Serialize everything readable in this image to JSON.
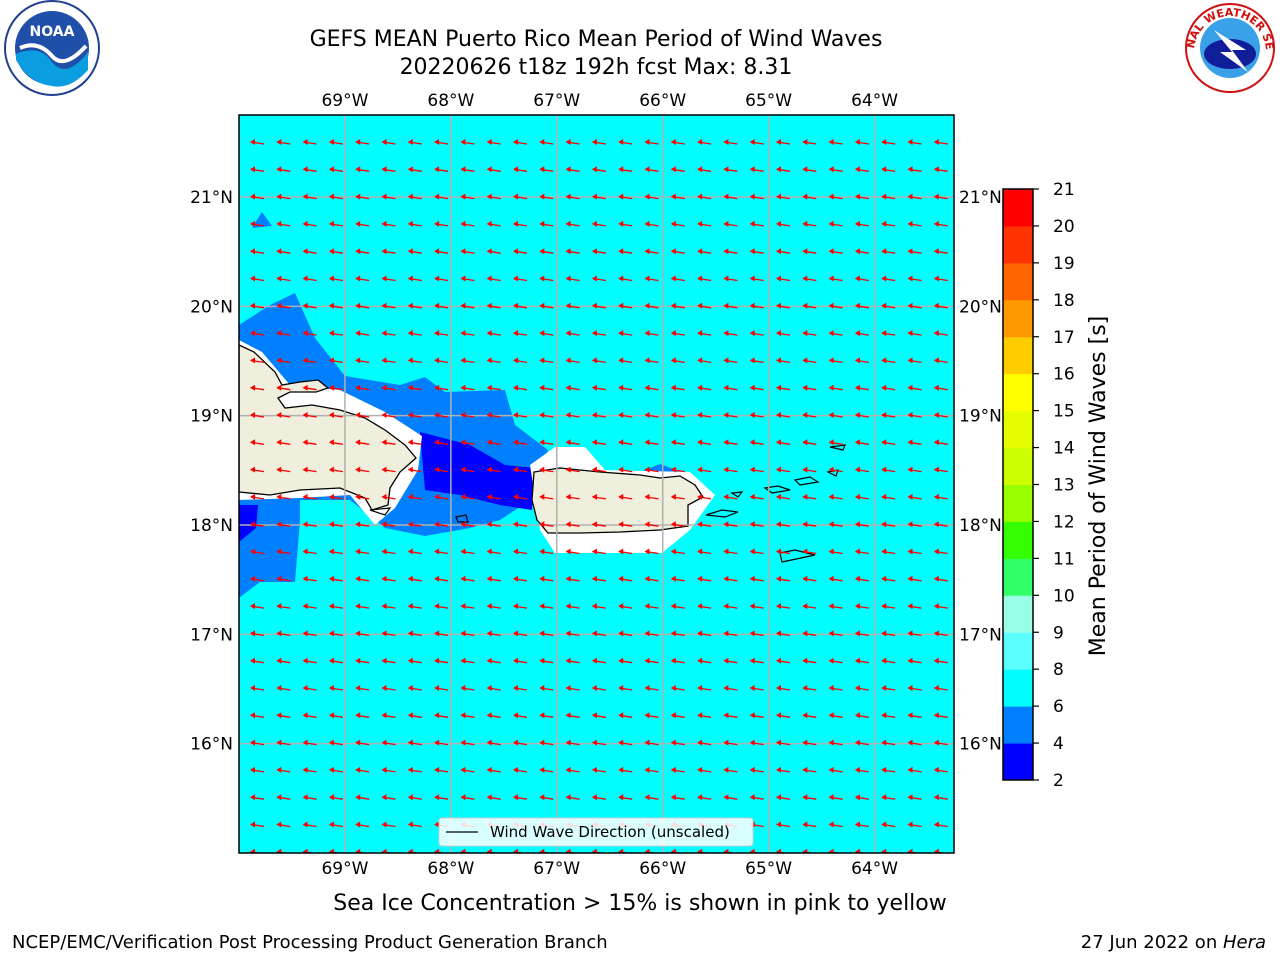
{
  "header": {
    "title_line1": "GEFS MEAN Puerto Rico Mean Period of Wind Waves",
    "title_line2": "20220626 t18z 192h fcst   Max: 8.31"
  },
  "logos": {
    "left": {
      "icon": "noaa-logo-icon",
      "text": "NOAA"
    },
    "right": {
      "icon": "nws-logo-icon",
      "text": "NATIONAL WEATHER SERVICE"
    }
  },
  "map": {
    "lon_labels": [
      "69°W",
      "68°W",
      "67°W",
      "66°W",
      "65°W",
      "64°W"
    ],
    "lat_labels": [
      "21°N",
      "20°N",
      "19°N",
      "18°N",
      "17°N",
      "16°N"
    ],
    "lon_values": [
      -69,
      -68,
      -67,
      -66,
      -65,
      -64
    ],
    "lat_values": [
      21,
      20,
      19,
      18,
      17,
      16
    ],
    "extent": {
      "lon_min": -70.0,
      "lon_max": -63.25,
      "lat_min": 15.0,
      "lat_max": 21.75
    },
    "legend_label": "Wind Wave Direction (unscaled)",
    "colors": {
      "ocean": "#00ffff",
      "land": "#f0eedc",
      "arrows": "#ff0000",
      "grid": "#b0b0b0"
    }
  },
  "colorbar": {
    "label": "Mean Period of Wind Waves [s]",
    "ticks": [
      "2",
      "4",
      "6",
      "8",
      "9",
      "10",
      "11",
      "12",
      "13",
      "14",
      "15",
      "16",
      "17",
      "18",
      "19",
      "20",
      "21"
    ],
    "colors": [
      "#0000ff",
      "#0080ff",
      "#00ffff",
      "#5cffff",
      "#99ffe6",
      "#33ff66",
      "#33ff00",
      "#99ff00",
      "#ccff00",
      "#e6ff00",
      "#ffff00",
      "#ffcc00",
      "#ff9900",
      "#ff6600",
      "#ff3300",
      "#ff0000"
    ]
  },
  "footer": {
    "sea_ice_note": "Sea Ice Concentration > 15% is shown in pink to yellow",
    "credit_left": "NCEP/EMC/Verification Post Processing Product Generation Branch",
    "credit_right_date": "27 Jun 2022 on ",
    "credit_right_host": "Hera"
  }
}
